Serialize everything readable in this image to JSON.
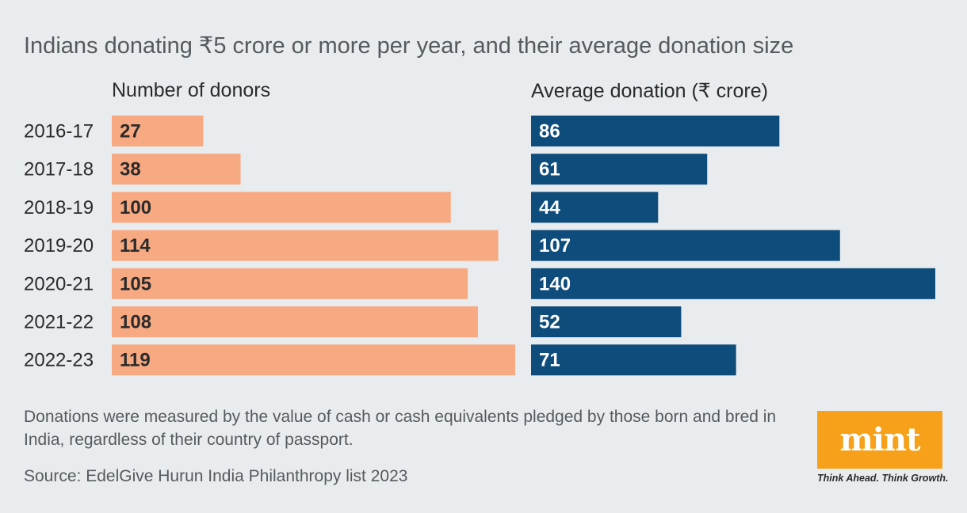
{
  "header": {
    "title": "Indians donating ₹5 crore or more per year, and their average donation size"
  },
  "chart_data": [
    {
      "type": "bar",
      "orientation": "horizontal",
      "title": "Number of donors",
      "categories": [
        "2016-17",
        "2017-18",
        "2018-19",
        "2019-20",
        "2020-21",
        "2021-22",
        "2022-23"
      ],
      "values": [
        27,
        38,
        100,
        114,
        105,
        108,
        119
      ],
      "color": "#f7a982",
      "label_color": "#2b2b2b",
      "xlim": [
        0,
        119
      ]
    },
    {
      "type": "bar",
      "orientation": "horizontal",
      "title": "Average donation (₹ crore)",
      "categories": [
        "2016-17",
        "2017-18",
        "2018-19",
        "2019-20",
        "2020-21",
        "2021-22",
        "2022-23"
      ],
      "values": [
        86,
        61,
        44,
        107,
        140,
        52,
        71
      ],
      "color": "#0e4c7c",
      "label_color": "#ffffff",
      "xlim": [
        0,
        140
      ]
    }
  ],
  "footer": {
    "note": "Donations were measured by the value of cash or cash equivalents pledged by those born and bred in India, regardless of their country of passport.",
    "source": "Source: EdelGive Hurun India Philanthropy list 2023"
  },
  "branding": {
    "logo": "mint",
    "tagline": "Think Ahead. Think Growth.",
    "color": "#f7a11a"
  }
}
